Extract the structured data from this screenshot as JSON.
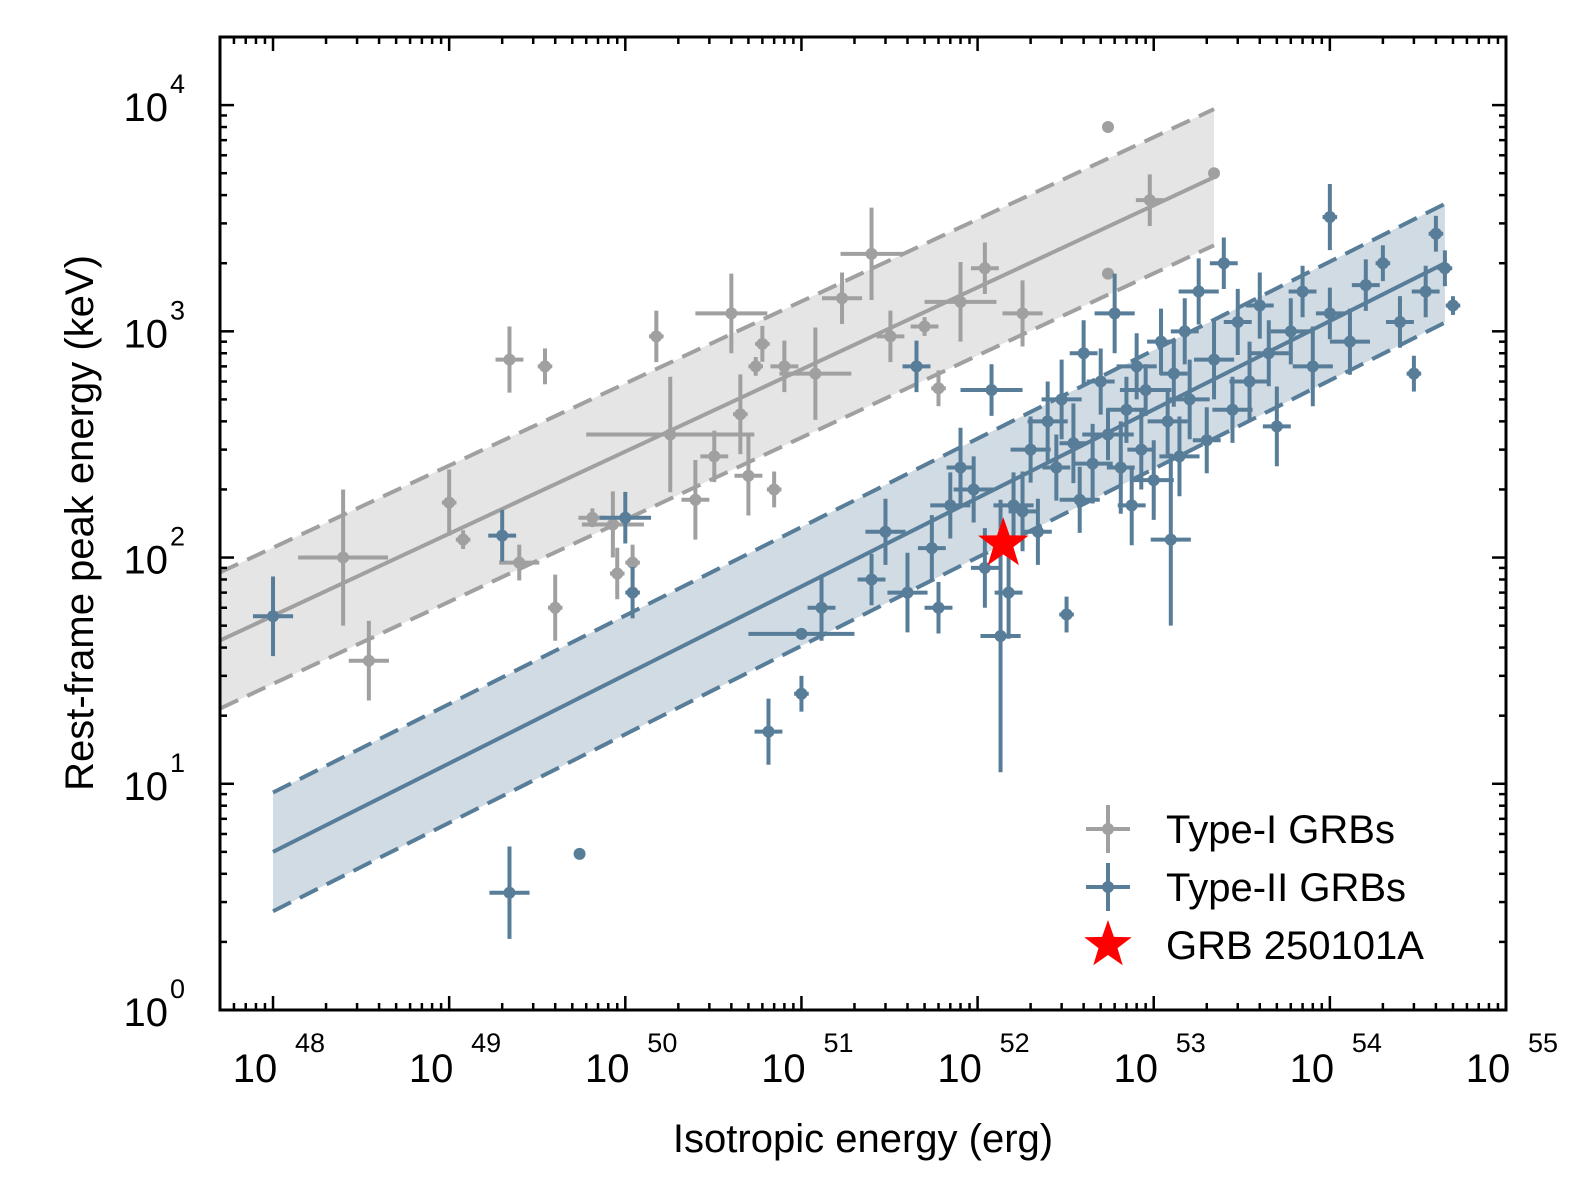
{
  "chart_data": {
    "type": "scatter",
    "title": "",
    "xlabel": "Isotropic energy (erg)",
    "ylabel": "Rest-frame peak energy (keV)",
    "xscale": "log",
    "yscale": "log",
    "xlim": [
      5e+47,
      1e+55
    ],
    "ylim": [
      1,
      20000
    ],
    "x_ticks": [
      {
        "base": "10",
        "exp": "48"
      },
      {
        "base": "10",
        "exp": "49"
      },
      {
        "base": "10",
        "exp": "50"
      },
      {
        "base": "10",
        "exp": "51"
      },
      {
        "base": "10",
        "exp": "52"
      },
      {
        "base": "10",
        "exp": "53"
      },
      {
        "base": "10",
        "exp": "54"
      },
      {
        "base": "10",
        "exp": "55"
      }
    ],
    "y_ticks": [
      {
        "base": "10",
        "exp": "0"
      },
      {
        "base": "10",
        "exp": "1"
      },
      {
        "base": "10",
        "exp": "2"
      },
      {
        "base": "10",
        "exp": "3"
      },
      {
        "base": "10",
        "exp": "4"
      }
    ],
    "legend_position": "bottom-right",
    "colors": {
      "type1": "#a0a0a0",
      "type2": "#587d99",
      "highlight": "#ff0000"
    },
    "series": [
      {
        "name": "Type-I GRBs",
        "color": "#a0a0a0",
        "fit": {
          "x_range": [
            5e+47,
            2.2e+53
          ],
          "y_start": 43,
          "y_end": 4800,
          "band_factor": 2.0
        },
        "points": [
          [
            2.5e+48,
            100,
            1.8,
            2.0
          ],
          [
            3.5e+48,
            35,
            1.3,
            1.5
          ],
          [
            1e+49,
            175,
            1.1,
            1.4
          ],
          [
            1.2e+49,
            120,
            1.1,
            1.1
          ],
          [
            2.2e+49,
            750,
            1.2,
            1.4
          ],
          [
            2.5e+49,
            95,
            1.3,
            1.2
          ],
          [
            3.5e+49,
            700,
            1.1,
            1.2
          ],
          [
            4e+49,
            60,
            1.1,
            1.4
          ],
          [
            6.5e+49,
            150,
            1.2,
            1.1
          ],
          [
            8.5e+49,
            140,
            1.5,
            1.4
          ],
          [
            9e+49,
            85,
            1.1,
            1.3
          ],
          [
            1.1e+50,
            95,
            1.1,
            1.2
          ],
          [
            1.5e+50,
            950,
            1.1,
            1.3
          ],
          [
            1.8e+50,
            350,
            3.0,
            1.8
          ],
          [
            2.5e+50,
            180,
            1.2,
            1.5
          ],
          [
            3.2e+50,
            280,
            1.2,
            1.3
          ],
          [
            4e+50,
            1200,
            1.6,
            1.5
          ],
          [
            4.5e+50,
            430,
            1.1,
            1.5
          ],
          [
            5e+50,
            230,
            1.2,
            1.5
          ],
          [
            5.5e+50,
            700,
            1.1,
            1.1
          ],
          [
            6e+50,
            880,
            1.1,
            1.2
          ],
          [
            7e+50,
            200,
            1.1,
            1.2
          ],
          [
            8e+50,
            700,
            1.2,
            1.3
          ],
          [
            1.2e+51,
            650,
            1.6,
            1.6
          ],
          [
            1.7e+51,
            1400,
            1.3,
            1.3
          ],
          [
            2.5e+51,
            2200,
            1.5,
            1.6
          ],
          [
            3.2e+51,
            950,
            1.2,
            1.3
          ],
          [
            5e+51,
            1050,
            1.2,
            1.1
          ],
          [
            6e+51,
            560,
            1.1,
            1.2
          ],
          [
            8e+51,
            1350,
            1.6,
            1.5
          ],
          [
            1.1e+52,
            1900,
            1.2,
            1.3
          ],
          [
            1.8e+52,
            1200,
            1.3,
            1.4
          ],
          [
            5.5e+52,
            8000,
            1.0,
            1.0
          ],
          [
            5.5e+52,
            1800,
            1.0,
            1.0
          ],
          [
            9.5e+52,
            3800,
            1.2,
            1.3
          ],
          [
            2.2e+53,
            5000,
            1.0,
            1.0
          ]
        ]
      },
      {
        "name": "Type-II GRBs",
        "color": "#587d99",
        "fit": {
          "x_range": [
            1e+48,
            4.5e+54
          ],
          "y_start": 5.0,
          "y_end": 2000,
          "band_factor": 1.83
        },
        "points": [
          [
            1e+48,
            55,
            1.3,
            1.5
          ],
          [
            2e+49,
            125,
            1.2,
            1.3
          ],
          [
            2.2e+49,
            3.3,
            1.3,
            1.6
          ],
          [
            5.5e+49,
            4.9,
            1.0,
            1.0
          ],
          [
            1e+50,
            150,
            1.4,
            1.3
          ],
          [
            1.1e+50,
            70,
            1.1,
            1.3
          ],
          [
            6.5e+50,
            17,
            1.2,
            1.4
          ],
          [
            1e+51,
            25,
            1.1,
            1.2
          ],
          [
            1e+51,
            46,
            2.0,
            1.0
          ],
          [
            1.3e+51,
            60,
            1.2,
            1.4
          ],
          [
            2.5e+51,
            80,
            1.2,
            1.3
          ],
          [
            3e+51,
            130,
            1.3,
            1.4
          ],
          [
            4e+51,
            70,
            1.3,
            1.5
          ],
          [
            4.5e+51,
            700,
            1.2,
            1.3
          ],
          [
            5.5e+51,
            110,
            1.2,
            1.4
          ],
          [
            6e+51,
            60,
            1.2,
            1.3
          ],
          [
            7e+51,
            170,
            1.3,
            1.4
          ],
          [
            8e+51,
            250,
            1.2,
            1.5
          ],
          [
            9.5e+51,
            200,
            1.3,
            1.4
          ],
          [
            1.1e+52,
            90,
            1.2,
            1.5
          ],
          [
            1.2e+52,
            550,
            1.5,
            1.3
          ],
          [
            1.35e+52,
            45,
            1.3,
            4.0
          ],
          [
            1.5e+52,
            70,
            1.2,
            1.6
          ],
          [
            1.6e+52,
            170,
            1.3,
            1.4
          ],
          [
            1.8e+52,
            160,
            1.2,
            1.5
          ],
          [
            2e+52,
            300,
            1.3,
            1.4
          ],
          [
            2.2e+52,
            130,
            1.2,
            1.4
          ],
          [
            2.5e+52,
            400,
            1.3,
            1.5
          ],
          [
            2.8e+52,
            250,
            1.2,
            1.4
          ],
          [
            3e+52,
            500,
            1.3,
            1.5
          ],
          [
            3.2e+52,
            56,
            1.1,
            1.2
          ],
          [
            3.5e+52,
            320,
            1.2,
            1.5
          ],
          [
            3.8e+52,
            180,
            1.3,
            1.4
          ],
          [
            4e+52,
            800,
            1.2,
            1.4
          ],
          [
            4.5e+52,
            260,
            1.3,
            1.5
          ],
          [
            5e+52,
            600,
            1.2,
            1.4
          ],
          [
            5.5e+52,
            350,
            1.4,
            1.3
          ],
          [
            6e+52,
            1200,
            1.3,
            1.5
          ],
          [
            6.5e+52,
            250,
            1.2,
            1.6
          ],
          [
            7e+52,
            450,
            1.3,
            1.4
          ],
          [
            7.5e+52,
            170,
            1.2,
            1.5
          ],
          [
            8e+52,
            700,
            1.3,
            1.4
          ],
          [
            8.5e+52,
            300,
            1.2,
            1.5
          ],
          [
            9e+52,
            550,
            1.4,
            1.3
          ],
          [
            1e+53,
            220,
            1.3,
            1.5
          ],
          [
            1.1e+53,
            900,
            1.2,
            1.4
          ],
          [
            1.2e+53,
            400,
            1.3,
            1.4
          ],
          [
            1.25e+53,
            120,
            1.3,
            2.4
          ],
          [
            1.3e+53,
            650,
            1.2,
            1.4
          ],
          [
            1.4e+53,
            280,
            1.3,
            1.5
          ],
          [
            1.5e+53,
            1000,
            1.2,
            1.4
          ],
          [
            1.6e+53,
            500,
            1.3,
            1.5
          ],
          [
            1.8e+53,
            1500,
            1.3,
            1.4
          ],
          [
            2e+53,
            330,
            1.2,
            1.4
          ],
          [
            2.2e+53,
            750,
            1.3,
            1.5
          ],
          [
            2.5e+53,
            2000,
            1.2,
            1.3
          ],
          [
            2.8e+53,
            450,
            1.3,
            1.4
          ],
          [
            3e+53,
            1100,
            1.2,
            1.4
          ],
          [
            3.5e+53,
            600,
            1.3,
            1.5
          ],
          [
            4e+53,
            1300,
            1.2,
            1.4
          ],
          [
            4.5e+53,
            800,
            1.3,
            1.4
          ],
          [
            5e+53,
            380,
            1.2,
            1.5
          ],
          [
            6e+53,
            1000,
            1.3,
            1.4
          ],
          [
            7e+53,
            1500,
            1.2,
            1.3
          ],
          [
            8e+53,
            700,
            1.3,
            1.5
          ],
          [
            1e+54,
            3200,
            1.1,
            1.4
          ],
          [
            1e+54,
            1200,
            1.2,
            1.3
          ],
          [
            1.3e+54,
            900,
            1.3,
            1.4
          ],
          [
            1.6e+54,
            1600,
            1.2,
            1.3
          ],
          [
            2e+54,
            2000,
            1.1,
            1.2
          ],
          [
            2.5e+54,
            1100,
            1.2,
            1.3
          ],
          [
            3e+54,
            650,
            1.1,
            1.2
          ],
          [
            3.5e+54,
            1500,
            1.2,
            1.3
          ],
          [
            4e+54,
            2700,
            1.1,
            1.2
          ],
          [
            4.5e+54,
            1900,
            1.1,
            1.2
          ],
          [
            5e+54,
            1300,
            1.1,
            1.1
          ]
        ]
      },
      {
        "name": "GRB 250101A",
        "color": "#ff0000",
        "points": [
          [
            1.4e+52,
            115,
            1.0,
            1.0
          ]
        ]
      }
    ]
  }
}
